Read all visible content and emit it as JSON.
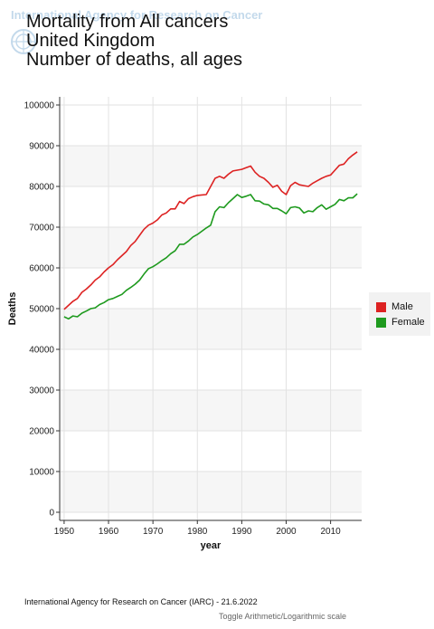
{
  "watermark": {
    "text": "International Agency for Research on Cancer",
    "color": "#2a7ab8",
    "icon": "who-emblem-icon"
  },
  "title": {
    "lines": [
      "Mortality from All cancers",
      "United Kingdom",
      "Number of deaths, all ages"
    ]
  },
  "footer": {
    "credit": "International Agency for Research on Cancer (IARC) - 21.6.2022",
    "toggle_label": "Toggle Arithmetic/Logarithmic scale"
  },
  "chart_data": {
    "type": "line",
    "title": "Mortality from All cancers",
    "xlabel": "year",
    "ylabel": "Deaths",
    "xlim": [
      1949,
      2017
    ],
    "ylim": [
      -2000,
      102000
    ],
    "xticks": [
      1950,
      1960,
      1970,
      1980,
      1990,
      2000,
      2010
    ],
    "yticks": [
      0,
      10000,
      20000,
      30000,
      40000,
      50000,
      60000,
      70000,
      80000,
      90000,
      100000
    ],
    "grid": true,
    "legend_position": "right",
    "series": [
      {
        "name": "Male",
        "color": "#dd2222",
        "points": [
          [
            1950,
            49800
          ],
          [
            1951,
            50800
          ],
          [
            1952,
            51800
          ],
          [
            1953,
            52500
          ],
          [
            1954,
            54000
          ],
          [
            1955,
            54800
          ],
          [
            1956,
            55800
          ],
          [
            1957,
            57000
          ],
          [
            1958,
            57800
          ],
          [
            1959,
            59000
          ],
          [
            1960,
            60000
          ],
          [
            1961,
            60800
          ],
          [
            1962,
            62000
          ],
          [
            1963,
            63000
          ],
          [
            1964,
            64000
          ],
          [
            1965,
            65500
          ],
          [
            1966,
            66500
          ],
          [
            1967,
            68000
          ],
          [
            1968,
            69500
          ],
          [
            1969,
            70500
          ],
          [
            1970,
            71000
          ],
          [
            1971,
            71800
          ],
          [
            1972,
            73000
          ],
          [
            1973,
            73500
          ],
          [
            1974,
            74500
          ],
          [
            1975,
            74500
          ],
          [
            1976,
            76300
          ],
          [
            1977,
            75800
          ],
          [
            1978,
            77000
          ],
          [
            1979,
            77500
          ],
          [
            1980,
            77800
          ],
          [
            1981,
            77900
          ],
          [
            1982,
            78000
          ],
          [
            1983,
            80000
          ],
          [
            1984,
            82000
          ],
          [
            1985,
            82500
          ],
          [
            1986,
            82000
          ],
          [
            1987,
            83000
          ],
          [
            1988,
            83800
          ],
          [
            1989,
            84000
          ],
          [
            1990,
            84200
          ],
          [
            1991,
            84600
          ],
          [
            1992,
            85000
          ],
          [
            1993,
            83500
          ],
          [
            1994,
            82500
          ],
          [
            1995,
            82000
          ],
          [
            1996,
            81000
          ],
          [
            1997,
            79800
          ],
          [
            1998,
            80300
          ],
          [
            1999,
            78800
          ],
          [
            2000,
            78000
          ],
          [
            2001,
            80200
          ],
          [
            2002,
            81000
          ],
          [
            2003,
            80400
          ],
          [
            2004,
            80200
          ],
          [
            2005,
            80000
          ],
          [
            2006,
            80800
          ],
          [
            2007,
            81400
          ],
          [
            2008,
            82000
          ],
          [
            2009,
            82500
          ],
          [
            2010,
            82800
          ],
          [
            2011,
            84000
          ],
          [
            2012,
            85200
          ],
          [
            2013,
            85500
          ],
          [
            2014,
            86800
          ],
          [
            2015,
            87700
          ],
          [
            2016,
            88500
          ]
        ]
      },
      {
        "name": "Female",
        "color": "#1e9a1e",
        "points": [
          [
            1950,
            48000
          ],
          [
            1951,
            47500
          ],
          [
            1952,
            48200
          ],
          [
            1953,
            48000
          ],
          [
            1954,
            48900
          ],
          [
            1955,
            49400
          ],
          [
            1956,
            50000
          ],
          [
            1957,
            50200
          ],
          [
            1958,
            51000
          ],
          [
            1959,
            51500
          ],
          [
            1960,
            52200
          ],
          [
            1961,
            52500
          ],
          [
            1962,
            53000
          ],
          [
            1963,
            53500
          ],
          [
            1964,
            54500
          ],
          [
            1965,
            55200
          ],
          [
            1966,
            56000
          ],
          [
            1967,
            57000
          ],
          [
            1968,
            58500
          ],
          [
            1969,
            59800
          ],
          [
            1970,
            60300
          ],
          [
            1971,
            61000
          ],
          [
            1972,
            61800
          ],
          [
            1973,
            62500
          ],
          [
            1974,
            63500
          ],
          [
            1975,
            64200
          ],
          [
            1976,
            65800
          ],
          [
            1977,
            65800
          ],
          [
            1978,
            66600
          ],
          [
            1979,
            67600
          ],
          [
            1980,
            68200
          ],
          [
            1981,
            69000
          ],
          [
            1982,
            69800
          ],
          [
            1983,
            70500
          ],
          [
            1984,
            73800
          ],
          [
            1985,
            75000
          ],
          [
            1986,
            74800
          ],
          [
            1987,
            76000
          ],
          [
            1988,
            77000
          ],
          [
            1989,
            78000
          ],
          [
            1990,
            77300
          ],
          [
            1991,
            77600
          ],
          [
            1992,
            78000
          ],
          [
            1993,
            76500
          ],
          [
            1994,
            76400
          ],
          [
            1995,
            75700
          ],
          [
            1996,
            75500
          ],
          [
            1997,
            74600
          ],
          [
            1998,
            74600
          ],
          [
            1999,
            74000
          ],
          [
            2000,
            73300
          ],
          [
            2001,
            74800
          ],
          [
            2002,
            75000
          ],
          [
            2003,
            74700
          ],
          [
            2004,
            73500
          ],
          [
            2005,
            74000
          ],
          [
            2006,
            73800
          ],
          [
            2007,
            74800
          ],
          [
            2008,
            75500
          ],
          [
            2009,
            74400
          ],
          [
            2010,
            75000
          ],
          [
            2011,
            75600
          ],
          [
            2012,
            76800
          ],
          [
            2013,
            76500
          ],
          [
            2014,
            77200
          ],
          [
            2015,
            77200
          ],
          [
            2016,
            78200
          ]
        ]
      }
    ]
  }
}
